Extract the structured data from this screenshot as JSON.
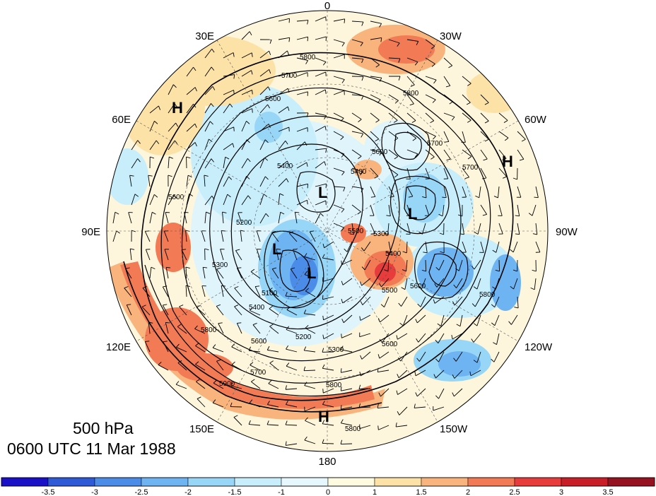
{
  "title": {
    "level": "500 hPa",
    "datetime": "0600 UTC 11 Mar 1988"
  },
  "longitude_labels": [
    "0",
    "30W",
    "60W",
    "90W",
    "120W",
    "150W",
    "180",
    "150E",
    "120E",
    "90E",
    "60E",
    "30E"
  ],
  "contour_labels": [
    "5800",
    "5700",
    "5600",
    "5400",
    "5800",
    "5600",
    "5700",
    "5400",
    "5500",
    "5300",
    "5400",
    "5600",
    "5500",
    "5200",
    "5100",
    "5300",
    "5600",
    "5700",
    "5800",
    "5900",
    "5800",
    "5600",
    "5400",
    "5300",
    "5200",
    "5600",
    "5800",
    "5800",
    "5700"
  ],
  "pressure_centers": [
    {
      "type": "H"
    },
    {
      "type": "H"
    },
    {
      "type": "H"
    },
    {
      "type": "L"
    },
    {
      "type": "L"
    },
    {
      "type": "L"
    },
    {
      "type": "L"
    }
  ],
  "colorbar": {
    "tick_labels": [
      "-3.5",
      "-3",
      "-2.5",
      "-2",
      "-1.5",
      "-1",
      "0",
      "1",
      "1.5",
      "2",
      "2.5",
      "3",
      "3.5"
    ],
    "colors": [
      "#1a10c8",
      "#2e5ad8",
      "#4b8ce8",
      "#6eb4f2",
      "#98d6f8",
      "#c8eefc",
      "#e6f8fd",
      "#fefbe0",
      "#fde2a8",
      "#f8b47c",
      "#f27a55",
      "#e83c3c",
      "#c81e28",
      "#961220"
    ]
  }
}
